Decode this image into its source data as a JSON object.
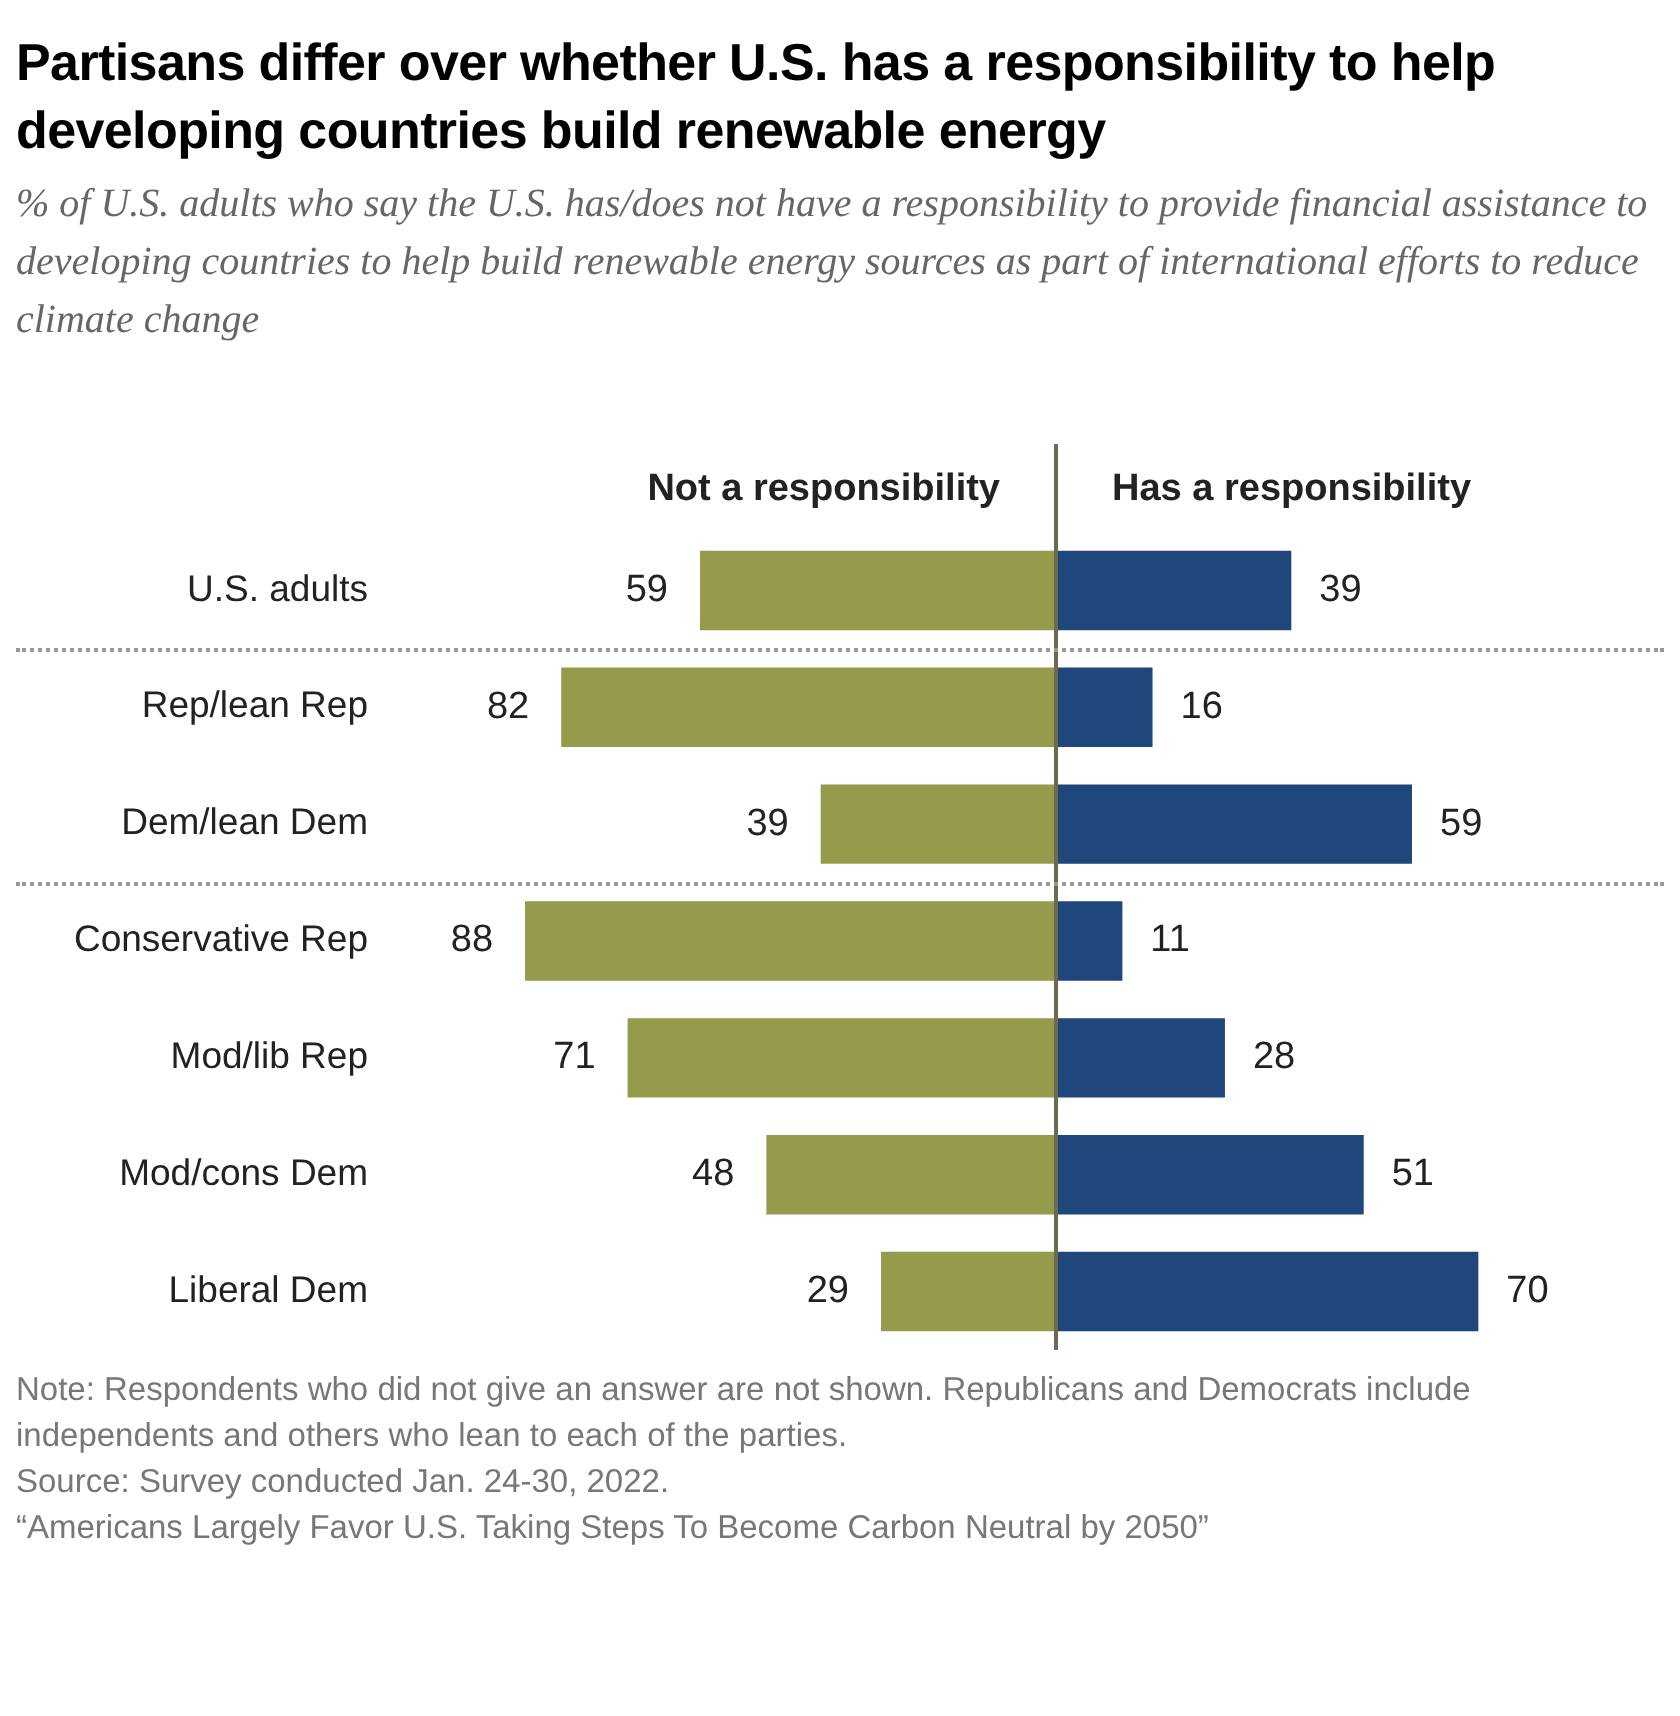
{
  "chart_data": [
    {
      "type": "bar",
      "orientation": "horizontal",
      "title": "Partisans differ over whether U.S. has a responsibility to help developing countries build renewable energy",
      "subtitle": "% of U.S. adults who say the U.S. has/does not have a responsibility to provide financial assistance to developing countries to help build renewable energy sources as part of international efforts to reduce climate change",
      "categories": [
        "U.S. adults",
        "Rep/lean Rep",
        "Dem/lean Dem",
        "Conservative Rep",
        "Mod/lib Rep",
        "Mod/cons Dem",
        "Liberal Dem"
      ],
      "series": [
        {
          "name": "Not a responsibility",
          "color": "#959b4b",
          "values": [
            59,
            82,
            39,
            88,
            71,
            48,
            29
          ]
        }
      ],
      "tick_labels": "y",
      "data_labels": true,
      "grid": false,
      "annotations": [
        "Note: Respondents who did not give an answer are not shown. Republicans and Democrats include independents and others who lean to each of the parties.",
        "Source: Survey conducted Jan. 24-30, 2022.",
        "“Americans Largely Favor U.S. Taking Steps To Become Carbon Neutral by 2050”"
      ]
    },
    {
      "type": "bar",
      "orientation": "horizontal",
      "categories": [
        null,
        null,
        null,
        null,
        null,
        null,
        null
      ],
      "series": [
        {
          "name": "Has a responsibility",
          "color": "#1f477b",
          "values": [
            39,
            16,
            59,
            11,
            28,
            51,
            70
          ]
        }
      ],
      "tick_labels": false,
      "data_labels": true,
      "grid": false
    }
  ]
}
